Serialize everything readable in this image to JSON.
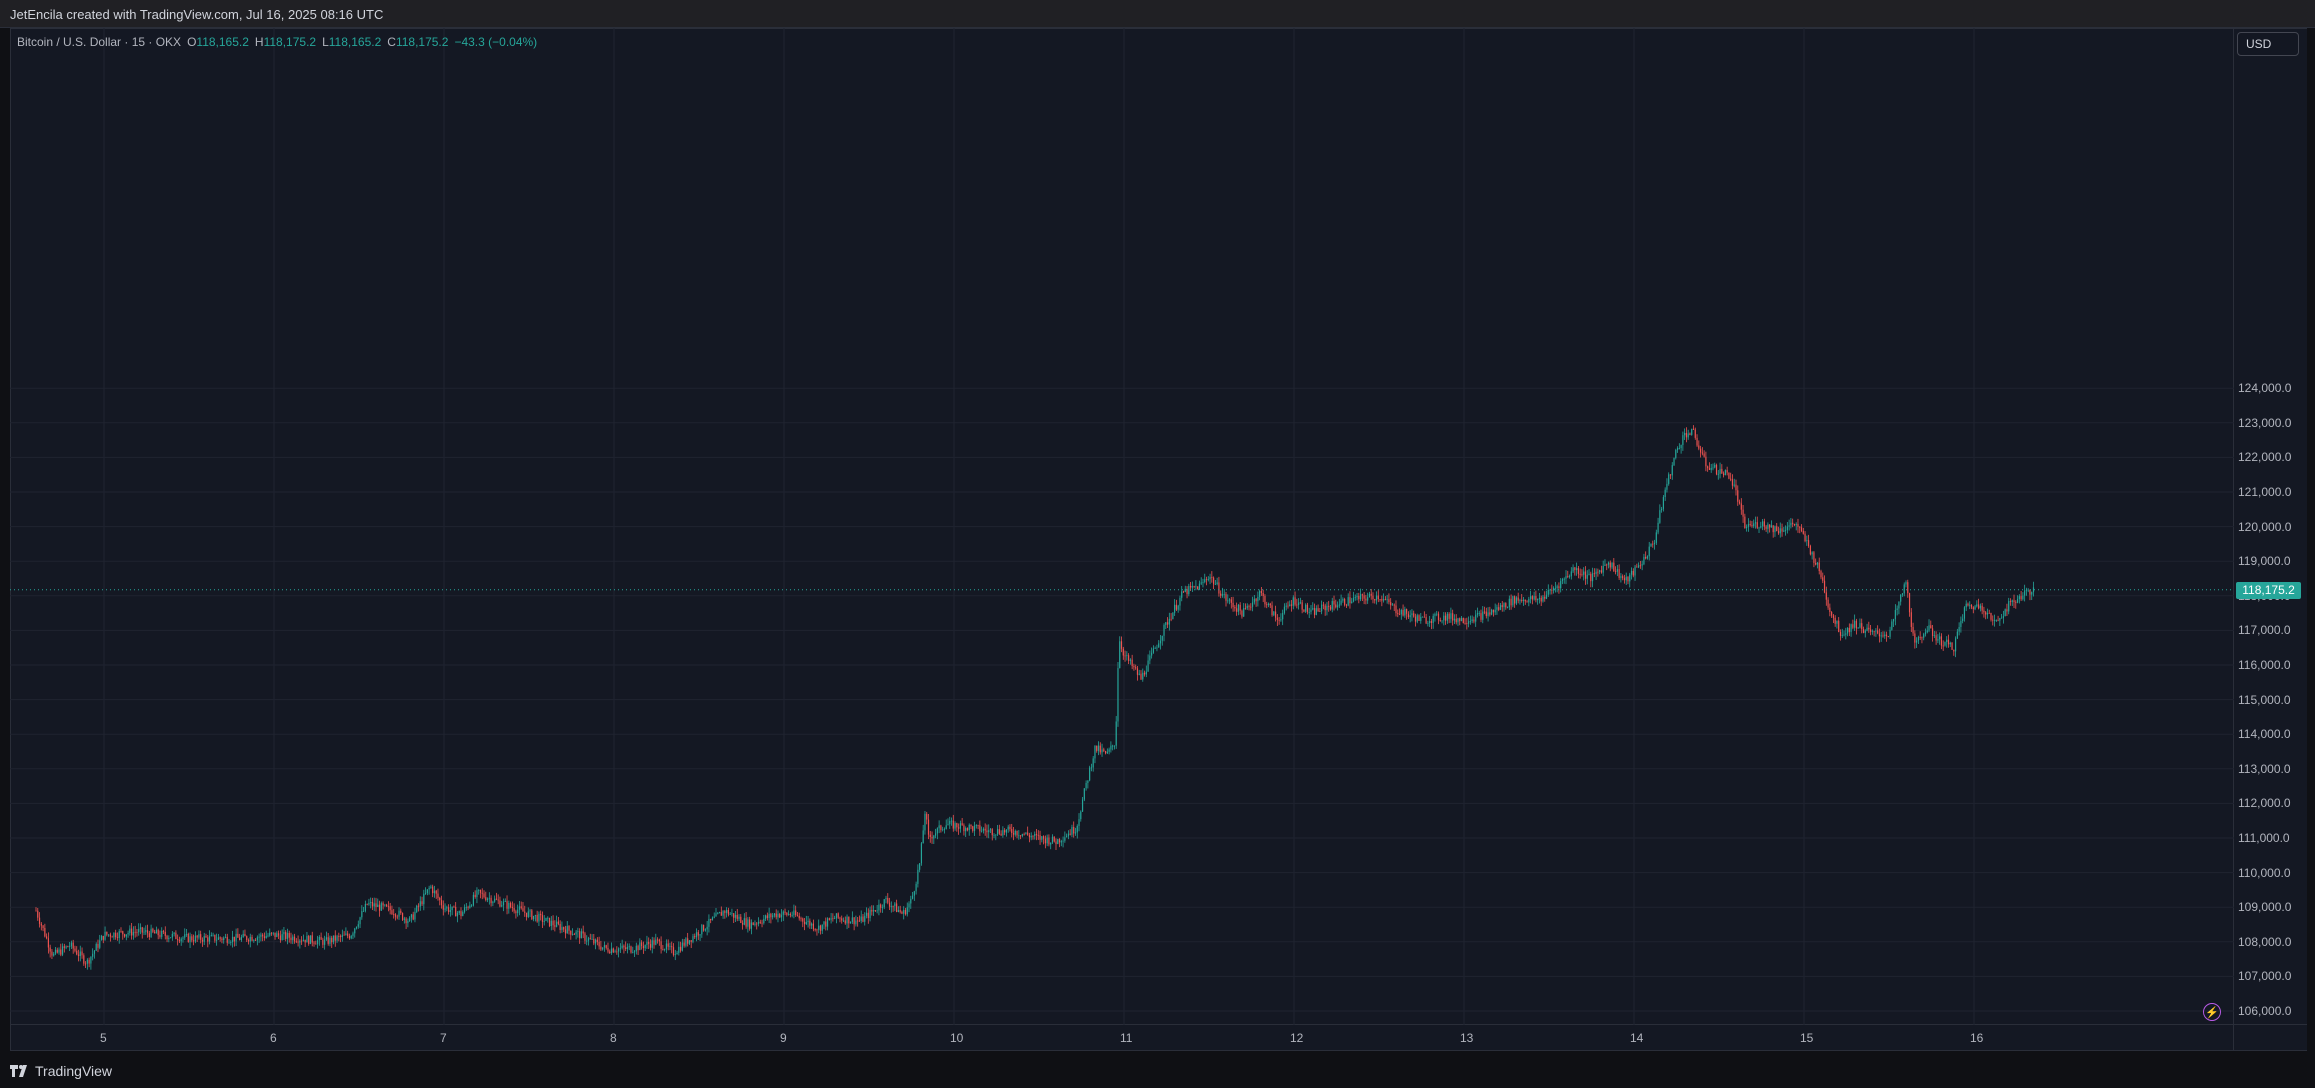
{
  "header": {
    "title": "JetEncila created with TradingView.com, Jul 16, 2025 08:16 UTC"
  },
  "legend": {
    "symbol": "Bitcoin / U.S. Dollar · 15 · OKX",
    "o_label": "O",
    "o_value": "118,165.2",
    "h_label": "H",
    "h_value": "118,175.2",
    "l_label": "L",
    "l_value": "118,165.2",
    "c_label": "C",
    "c_value": "118,175.2",
    "change": "−43.3 (−0.04%)"
  },
  "currency_button": "USD",
  "current_price_label": "118,175.2",
  "footer": {
    "brand": "TradingView"
  },
  "colors": {
    "up": "#26a69a",
    "down": "#ef5350",
    "background": "#141823",
    "grid": "#1f2330"
  },
  "chart_data": {
    "type": "candlestick",
    "symbol": "Bitcoin / U.S. Dollar",
    "interval": "15",
    "exchange": "OKX",
    "ylim": [
      105800,
      124800
    ],
    "y_ticks": [
      "124,000.0",
      "123,000.0",
      "122,000.0",
      "121,000.0",
      "120,000.0",
      "119,000.0",
      "118,000.0",
      "117,000.0",
      "116,000.0",
      "115,000.0",
      "114,000.0",
      "113,000.0",
      "112,000.0",
      "111,000.0",
      "110,000.0",
      "109,000.0",
      "108,000.0",
      "107,000.0",
      "106,000.0"
    ],
    "x_ticks": [
      "5",
      "6",
      "7",
      "8",
      "9",
      "10",
      "11",
      "12",
      "13",
      "14",
      "15",
      "16"
    ],
    "price_path": [
      [
        4.6,
        108900
      ],
      [
        4.7,
        107600
      ],
      [
        4.8,
        107900
      ],
      [
        4.9,
        107400
      ],
      [
        5.0,
        108200
      ],
      [
        5.2,
        108300
      ],
      [
        5.5,
        108100
      ],
      [
        5.8,
        108100
      ],
      [
        6.0,
        108200
      ],
      [
        6.3,
        108000
      ],
      [
        6.45,
        108200
      ],
      [
        6.55,
        109100
      ],
      [
        6.7,
        108900
      ],
      [
        6.8,
        108600
      ],
      [
        6.92,
        109600
      ],
      [
        7.0,
        109000
      ],
      [
        7.1,
        108800
      ],
      [
        7.2,
        109400
      ],
      [
        7.4,
        109000
      ],
      [
        7.6,
        108600
      ],
      [
        7.8,
        108200
      ],
      [
        7.95,
        107800
      ],
      [
        8.1,
        107800
      ],
      [
        8.25,
        108000
      ],
      [
        8.35,
        107700
      ],
      [
        8.5,
        108300
      ],
      [
        8.65,
        108900
      ],
      [
        8.8,
        108500
      ],
      [
        8.95,
        108800
      ],
      [
        9.05,
        108800
      ],
      [
        9.2,
        108400
      ],
      [
        9.3,
        108700
      ],
      [
        9.45,
        108600
      ],
      [
        9.6,
        109200
      ],
      [
        9.7,
        108800
      ],
      [
        9.75,
        109200
      ],
      [
        9.8,
        110300
      ],
      [
        9.83,
        111800
      ],
      [
        9.85,
        111000
      ],
      [
        9.95,
        111400
      ],
      [
        10.1,
        111300
      ],
      [
        10.2,
        111200
      ],
      [
        10.35,
        111200
      ],
      [
        10.5,
        111000
      ],
      [
        10.6,
        110900
      ],
      [
        10.72,
        111300
      ],
      [
        10.78,
        112600
      ],
      [
        10.83,
        113600
      ],
      [
        10.9,
        113400
      ],
      [
        10.95,
        113800
      ],
      [
        10.97,
        116800
      ],
      [
        11.0,
        116300
      ],
      [
        11.1,
        115600
      ],
      [
        11.25,
        117200
      ],
      [
        11.35,
        118100
      ],
      [
        11.45,
        118300
      ],
      [
        11.5,
        118600
      ],
      [
        11.6,
        117900
      ],
      [
        11.7,
        117500
      ],
      [
        11.8,
        118100
      ],
      [
        11.9,
        117300
      ],
      [
        12.0,
        117900
      ],
      [
        12.1,
        117500
      ],
      [
        12.2,
        117700
      ],
      [
        12.35,
        117900
      ],
      [
        12.5,
        118000
      ],
      [
        12.6,
        117600
      ],
      [
        12.75,
        117300
      ],
      [
        12.9,
        117400
      ],
      [
        13.0,
        117300
      ],
      [
        13.15,
        117500
      ],
      [
        13.3,
        117900
      ],
      [
        13.45,
        117900
      ],
      [
        13.55,
        118300
      ],
      [
        13.65,
        118800
      ],
      [
        13.75,
        118500
      ],
      [
        13.85,
        119000
      ],
      [
        13.95,
        118400
      ],
      [
        14.05,
        119000
      ],
      [
        14.12,
        119600
      ],
      [
        14.18,
        121000
      ],
      [
        14.25,
        122200
      ],
      [
        14.3,
        122700
      ],
      [
        14.35,
        122700
      ],
      [
        14.42,
        121800
      ],
      [
        14.5,
        121600
      ],
      [
        14.56,
        121500
      ],
      [
        14.6,
        121000
      ],
      [
        14.65,
        120000
      ],
      [
        14.75,
        120100
      ],
      [
        14.85,
        119900
      ],
      [
        14.95,
        120100
      ],
      [
        15.02,
        119500
      ],
      [
        15.1,
        118600
      ],
      [
        15.15,
        117600
      ],
      [
        15.22,
        116900
      ],
      [
        15.3,
        117200
      ],
      [
        15.4,
        116900
      ],
      [
        15.5,
        116900
      ],
      [
        15.6,
        118400
      ],
      [
        15.65,
        116500
      ],
      [
        15.72,
        117100
      ],
      [
        15.8,
        116700
      ],
      [
        15.88,
        116500
      ],
      [
        15.95,
        117700
      ],
      [
        16.05,
        117700
      ],
      [
        16.12,
        117200
      ],
      [
        16.2,
        117700
      ],
      [
        16.3,
        118100
      ],
      [
        16.36,
        118175
      ]
    ]
  }
}
